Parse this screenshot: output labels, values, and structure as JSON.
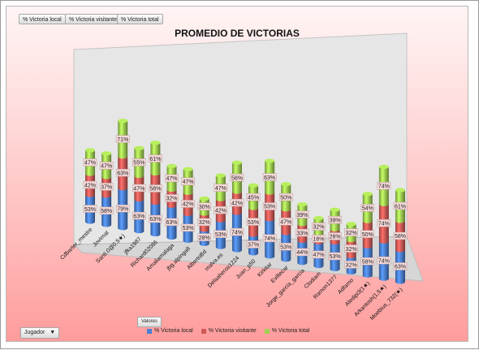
{
  "field_buttons": [
    "% Victoria local",
    "% Victoria visitante",
    "% Victoria total"
  ],
  "valores_label": "Valores",
  "jugador_label": "Jugador",
  "jugador_arrow": "▼",
  "colors": {
    "local": "#4a7fd6",
    "visitante": "#d05a56",
    "total": "#9fd051",
    "back_wall": "#e6e6e6",
    "floor": "#d6d6d6"
  },
  "chart_data": {
    "type": "bar",
    "subtype": "stacked-3d-cylinder",
    "title": "PROMEDIO DE VICTORIAS",
    "xlabel": "",
    "ylabel": "",
    "categories": [
      "Cdbarter_mestre",
      "Jovimat",
      "Santi.0@0.5★)",
      "jfka1987",
      "Richard02086",
      "Amaliamalaga",
      "jbg.alpinga8",
      "AlbertoBd",
      "malva.es",
      "Delaaheros1224",
      "Juan_p50",
      "Kirkitar",
      "Eviltecar",
      "Jorge_garcia_garcia",
      "Clodiam",
      "Ramon1377",
      "Adfamo",
      "Aledipi3(1★)",
      "Arkantosh(1,5★)",
      "Moebius_732(★)"
    ],
    "series": [
      {
        "name": "% Victoria local",
        "values": [
          53,
          58,
          79,
          63,
          63,
          63,
          53,
          28,
          53,
          74,
          37,
          74,
          53,
          44,
          47,
          53,
          32,
          58,
          74,
          63
        ]
      },
      {
        "name": "% Victoria visitante",
        "values": [
          42,
          37,
          63,
          47,
          58,
          32,
          42,
          32,
          42,
          42,
          53,
          53,
          47,
          33,
          16,
          26,
          32,
          50,
          74,
          58
        ]
      },
      {
        "name": "% Victoria total",
        "values": [
          47,
          47,
          71,
          55,
          61,
          47,
          47,
          30,
          47,
          58,
          45,
          63,
          50,
          39,
          32,
          39,
          32,
          54,
          74,
          61
        ]
      }
    ],
    "legend_position": "bottom",
    "grid": false
  }
}
